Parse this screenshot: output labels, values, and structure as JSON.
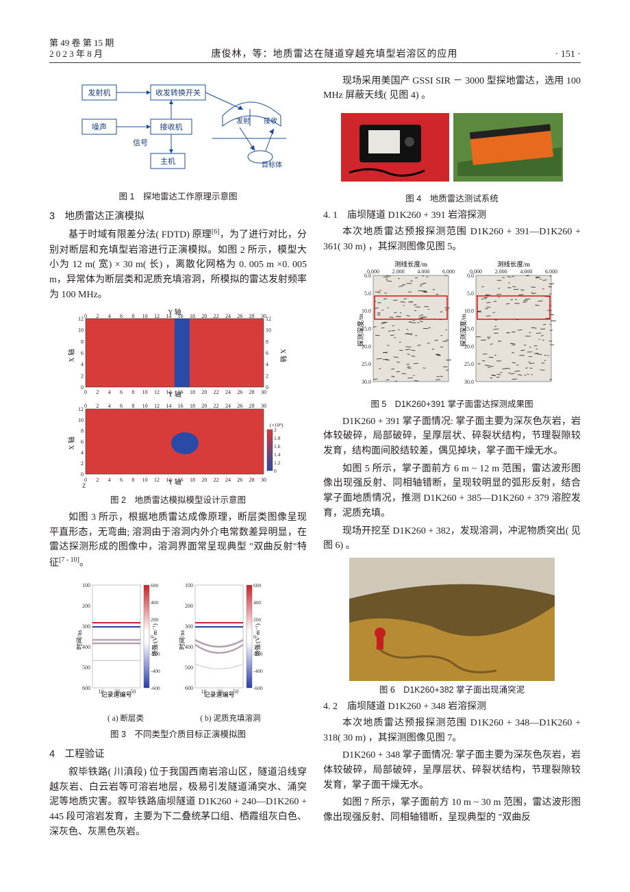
{
  "header": {
    "left_line1": "第 49 卷 第 15 期",
    "left_line2": "2 0 2 3 年 8 月",
    "center": "唐俊林，等：地质雷达在隧道穿越充填型岩溶区的应用",
    "page_num": "· 151 ·"
  },
  "left": {
    "fig1": {
      "caption": "图 1　探地雷达工作原理示意图",
      "boxes": {
        "transmitter": "发射机",
        "switch": "收发转换开关",
        "noise": "噪声",
        "receiver": "接收机",
        "host": "主机",
        "signal": "信号",
        "tx": "发射",
        "rx": "接收",
        "target": "目标体"
      },
      "colors": {
        "line": "#1a4aa0",
        "text": "#163b82"
      }
    },
    "sec3_title": "3　地质雷达正演模拟",
    "sec3_p1": "基于时域有限差分法( FDTD) 原理",
    "sec3_p1_ref": "[6]",
    "sec3_p1b": "，为了进行对比，分别对断层和充填型岩溶进行正演模拟。如图 2 所示，模型大小为 12 m( 宽) × 30 m( 长) ，离散化网格为 0. 005 m ×0. 005 m，异常体为断层类和泥质充填溶洞，所模拟的雷达发射频率为 100 MHz。",
    "fig2": {
      "caption": "图 2　地质雷达模拟模型设计示意图",
      "axis_label_y": "Y 轴",
      "axis_label_x": "X 轴",
      "x_ticks": [
        0,
        2,
        4,
        6,
        8,
        10,
        12,
        14,
        16,
        18,
        20,
        22,
        24,
        26,
        28,
        30
      ],
      "y_ticks_top": [
        12,
        10,
        8,
        6,
        4,
        2,
        0
      ],
      "y_ticks_bot": [
        12,
        10,
        8,
        6,
        4,
        2,
        0
      ],
      "z_label": "Z",
      "bg": "#d73b3a",
      "band": "#2a4aa8",
      "text": "#222",
      "colorbar_vals": [
        2.0,
        1.8,
        1.6,
        1.4,
        1.2,
        0
      ],
      "colorbar_unit": "(×10⁸)"
    },
    "p_after_fig2a": "如图 3 所示，根据地质雷达成像原理，断层类图像呈现平直形态，无弯曲; 溶洞由于溶洞内外介电常数差异明显，在雷达探测形成的图像中，溶洞界面常呈现典型 \"双曲反射\"特征",
    "p_after_fig2_ref": "[7 - 10]",
    "p_after_fig2b": "。",
    "fig3": {
      "caption": "图 3　不同类型介质目标正演模拟图",
      "sub_a": "( a) 断层类",
      "sub_b": "( b) 泥质充填溶洞",
      "y_label": "时间/ns",
      "x_label": "记录道编号",
      "cb_label": "场强/(V·m⁻¹)",
      "y_ticks": [
        100,
        200,
        300,
        400,
        500,
        600
      ],
      "x_ticks": [
        10,
        30,
        50
      ],
      "cb_ticks": [
        600,
        400,
        200,
        0,
        -200,
        -400,
        -600
      ],
      "pos_color": "#c6232a",
      "neg_color": "#2a3ca8",
      "line_color": "#c9c9c9"
    },
    "sec4_title": "4　工程验证",
    "sec4_p1": "叙毕铁路( 川滇段) 位于我国西南岩溶山区，隧道沿线穿越灰岩、白云岩等可溶岩地层，极易引发隧道涌突水、涌突泥等地质灾害。叙毕铁路庙坝隧道 D1K260 + 240—D1K260 + 445 段可溶岩发育，主要为下二叠统茅口组、栖霞组灰白色、深灰色、灰黑色灰岩。"
  },
  "right": {
    "p0": "现场采用美国产 GSSI SIR － 3000 型探地雷达，选用 100 MHz 屏蔽天线( 见图 4) 。",
    "fig4": {
      "caption": "图 4　地质雷达测试系统",
      "left_bg": "#d0252a",
      "right_bg": "#e86a1e",
      "screen": "#e8e6e0",
      "black": "#111"
    },
    "sec41_title": "4. 1　庙坝隧道 D1K260 + 391 岩溶探测",
    "sec41_p1": "本次地质雷达预报探测范围 D1K260 + 391—D1K260 + 361( 30 m) ，其探测图像见图 5。",
    "fig5": {
      "caption": "图 5　D1K260+391 掌子面雷达探测成果图",
      "top_label_l": "测线长度/m",
      "top_label_r": "测线长度/m",
      "y_label": "探测深度/m",
      "x_ticks": [
        0.0,
        2.0,
        4.0,
        6.0
      ],
      "y_ticks": [
        0.0,
        5.0,
        10.0,
        15.0,
        20.0,
        25.0,
        30.0
      ],
      "bg": "#e6e2da",
      "speckle": "#3a362e",
      "box": "#d11"
    },
    "p_after5_a": "D1K260 + 391 掌子面情况: 掌子面主要为深灰色灰岩，岩体较破碎，局部破碎，呈厚层状、碎裂状结构，节理裂隙较发育，结构面间胶结较差，偶见掉块，掌子面干燥无水。",
    "p_after5_b": "如图 5 所示，掌子面前方 6 m ~ 12 m 范围，雷达波形图像出现强反射、同相轴错断，呈现较明显的弧形反射，结合掌子面地质情况，推测 D1K260 + 385—D1K260 + 379 溶腔发育，泥质充填。",
    "p_after5_c": "现场开挖至 D1K260 + 382，发现溶洞，冲泥物质突出( 见图 6) 。",
    "fig6": {
      "caption": "图 6　D1K260+382 掌子面出现涌突泥",
      "rock": "#b78a34",
      "rock_dark": "#6c5528",
      "ceiling": "#cfc8b8",
      "person": "#c52020"
    },
    "sec42_title": "4. 2　庙坝隧道 D1K260 + 348 岩溶探测",
    "sec42_p1": "本次地质雷达预报探测范围 D1K260 + 348—D1K260 + 318( 30 m) ，其探测图像见图 7。",
    "sec42_p2": "D1K260 + 348 掌子面情况: 掌子面主要为深灰色灰岩，岩体较破碎，局部破碎，呈厚层状、碎裂状结构，节理裂隙较发育，掌子面干燥无水。",
    "sec42_p3": "如图 7 所示，掌子面前方 10 m ~ 30 m 范围，雷达波形图像出现强反射、同相轴错断，呈现典型的 \"双曲反"
  }
}
